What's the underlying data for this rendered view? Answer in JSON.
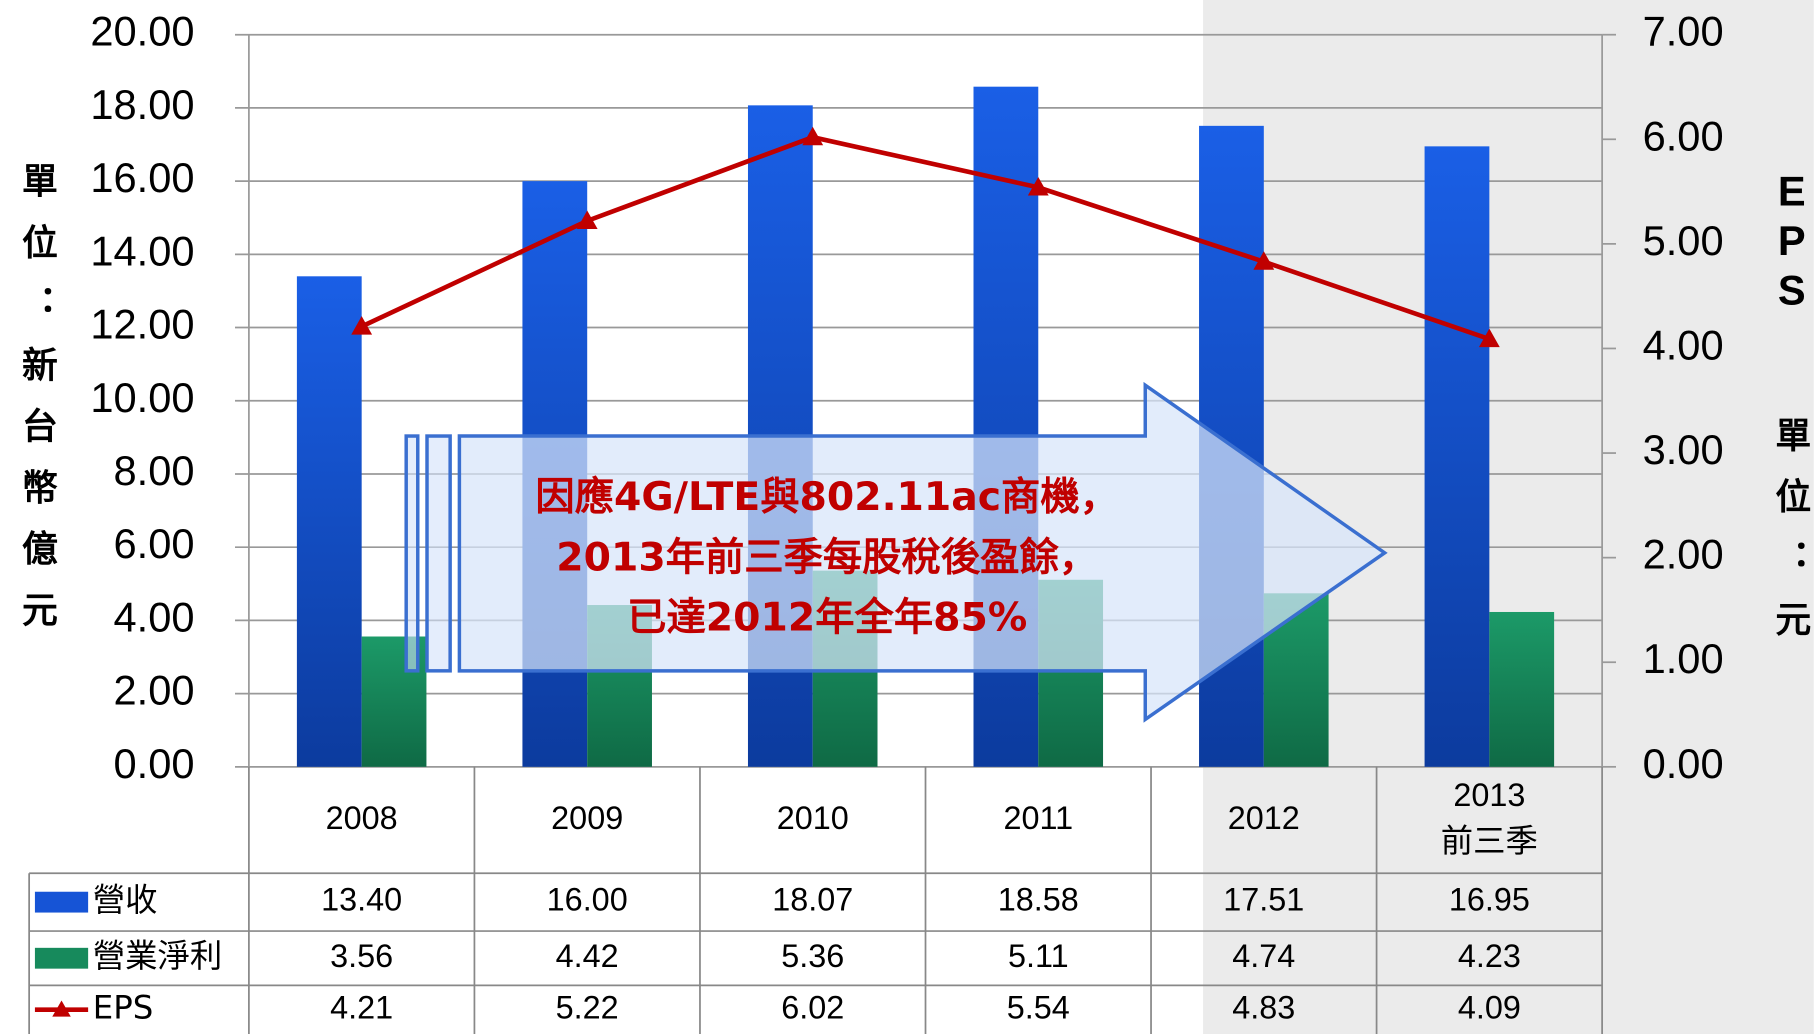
{
  "chart_data": {
    "type": "bar",
    "categories": [
      "2008",
      "2009",
      "2010",
      "2011",
      "2012",
      "2013\n前三季"
    ],
    "series": [
      {
        "name": "營收",
        "color": "#1654d6",
        "values": [
          13.4,
          16.0,
          18.07,
          18.58,
          17.51,
          16.95
        ],
        "value_labels": [
          "13.40",
          "16.00",
          "18.07",
          "18.58",
          "17.51",
          "16.95"
        ]
      },
      {
        "name": "營業淨利",
        "color": "#178a5c",
        "values": [
          3.56,
          4.42,
          5.36,
          5.11,
          4.74,
          4.23
        ],
        "value_labels": [
          "3.56",
          "4.42",
          "5.36",
          "5.11",
          "4.74",
          "4.23"
        ]
      },
      {
        "name": "EPS",
        "color": "#c00000",
        "type": "line",
        "axis": "y2",
        "values": [
          4.21,
          5.22,
          6.02,
          5.54,
          4.83,
          4.09
        ],
        "value_labels": [
          "4.21",
          "5.22",
          "6.02",
          "5.54",
          "4.83",
          "4.09"
        ]
      }
    ],
    "ylabel": "單位：新台幣億元",
    "y2label_title": "EPS",
    "y2label": "單位：元",
    "ylim": [
      0,
      20
    ],
    "yticks": [
      {
        "value": 0,
        "label": "0.00"
      },
      {
        "value": 2,
        "label": "2.00"
      },
      {
        "value": 4,
        "label": "4.00"
      },
      {
        "value": 6,
        "label": "6.00"
      },
      {
        "value": 8,
        "label": "8.00"
      },
      {
        "value": 10,
        "label": "10.00"
      },
      {
        "value": 12,
        "label": "12.00"
      },
      {
        "value": 14,
        "label": "14.00"
      },
      {
        "value": 16,
        "label": "16.00"
      },
      {
        "value": 18,
        "label": "18.00"
      },
      {
        "value": 20,
        "label": "20.00"
      }
    ],
    "y2lim": [
      0,
      7
    ],
    "y2ticks": [
      {
        "value": 0,
        "label": "0.00"
      },
      {
        "value": 1,
        "label": "1.00"
      },
      {
        "value": 2,
        "label": "2.00"
      },
      {
        "value": 3,
        "label": "3.00"
      },
      {
        "value": 4,
        "label": "4.00"
      },
      {
        "value": 5,
        "label": "5.00"
      },
      {
        "value": 6,
        "label": "6.00"
      },
      {
        "value": 7,
        "label": "7.00"
      }
    ],
    "grid": true,
    "annotation": [
      "因應4G/LTE與802.11ac商機，",
      "2013年前三季每股稅後盈餘，",
      "已達2012年全年85%"
    ]
  }
}
